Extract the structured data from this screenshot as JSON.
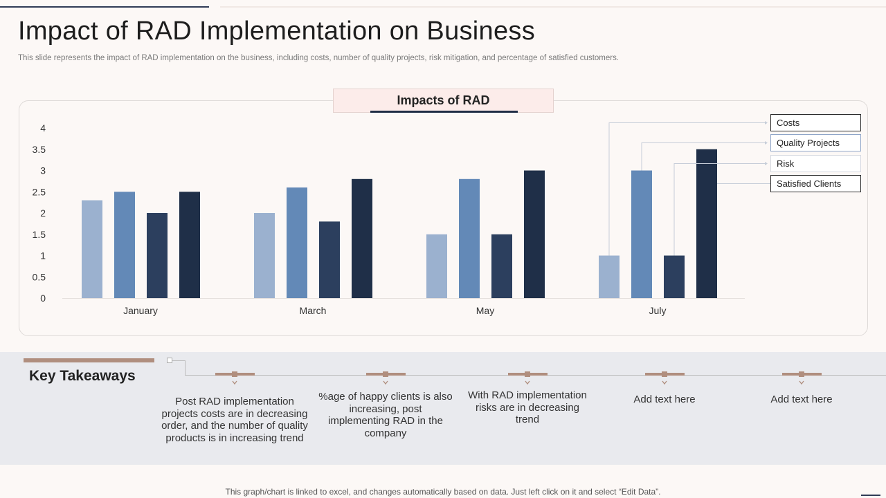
{
  "header": {
    "title": "Impact of RAD Implementation on Business",
    "subtitle": "This slide represents the impact of RAD  implementation on the business, including costs, number of quality projects, risk mitigation, and percentage of satisfied customers."
  },
  "chart_data": {
    "type": "bar",
    "title": "Impacts of RAD",
    "categories": [
      "January",
      "March",
      "May",
      "July"
    ],
    "series": [
      {
        "name": "Costs",
        "values": [
          2.3,
          2.0,
          1.5,
          1.0
        ],
        "color": "#9bb1cf"
      },
      {
        "name": "Quality Projects",
        "values": [
          2.5,
          2.6,
          2.8,
          3.0
        ],
        "color": "#6389b7"
      },
      {
        "name": "Risk",
        "values": [
          2.0,
          1.8,
          1.5,
          1.0
        ],
        "color": "#2c3f5e"
      },
      {
        "name": "Satisfied Clients",
        "values": [
          2.5,
          2.8,
          3.0,
          3.5
        ],
        "color": "#1f2f48"
      }
    ],
    "yticks": [
      "0",
      "0.5",
      "1",
      "1.5",
      "2",
      "2.5",
      "3",
      "3.5",
      "4"
    ],
    "ylim": [
      0,
      4
    ],
    "xlabel": "",
    "ylabel": "",
    "legend_position": "right"
  },
  "legend": {
    "border_colors": [
      "#2b2b2b",
      "#8fa5c8",
      "#d5d8e0",
      "#2b2b2b"
    ]
  },
  "takeaways": {
    "title": "Key Takeaways",
    "items": [
      {
        "text": "Post RAD implementation projects costs are in decreasing order, and the number of quality products is in increasing trend"
      },
      {
        "text": "%age of happy clients is also increasing, post implementing RAD in the company"
      },
      {
        "text": "With RAD implementation risks are in decreasing trend"
      },
      {
        "text": "Add text here"
      },
      {
        "text": "Add text here"
      }
    ],
    "accent_color": "#b08e7e"
  },
  "footer": {
    "note": "This graph/chart is linked to excel,  and changes automatically based on data. Just left click on it and select “Edit Data”."
  }
}
